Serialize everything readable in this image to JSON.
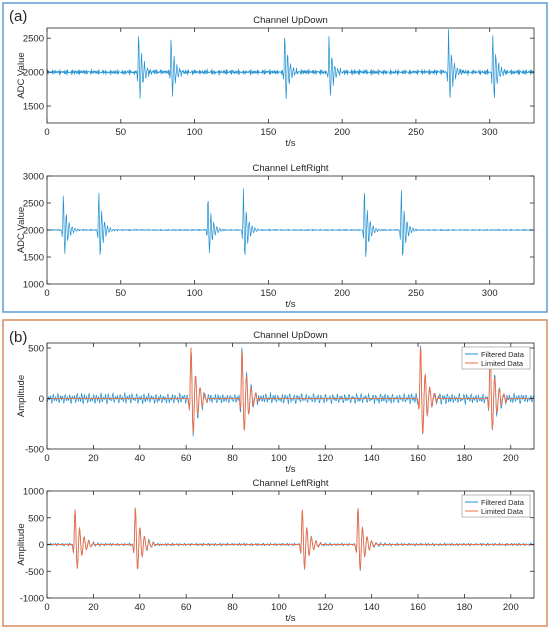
{
  "panels": [
    {
      "label": "(a)",
      "border_color": "#5b9bd5"
    },
    {
      "label": "(b)",
      "border_color": "#d98a5c"
    }
  ],
  "colors": {
    "filtered": "#1f8fd0",
    "limited": "#ef6c46",
    "axis": "#262626"
  },
  "chart_data": [
    {
      "type": "line",
      "panel": "(a)",
      "title": "Channel UpDown",
      "xlabel": "t/s",
      "ylabel": "ADC Value",
      "xlim": [
        0,
        330
      ],
      "ylim": [
        1250,
        2650
      ],
      "xticks": [
        0,
        50,
        100,
        150,
        200,
        250,
        300
      ],
      "yticks": [
        1500,
        2000,
        2500
      ],
      "baseline": 2000,
      "noise": 45,
      "noise_freq": 1.6,
      "legend": false,
      "series": [
        {
          "color": "#1f8fd0",
          "bursts": [
            {
              "t": 62,
              "amp": 600
            },
            {
              "t": 84,
              "amp": 520
            },
            {
              "t": 161,
              "amp": 600
            },
            {
              "t": 191,
              "amp": 540
            },
            {
              "t": 272,
              "amp": 620
            },
            {
              "t": 302,
              "amp": 600
            }
          ]
        }
      ]
    },
    {
      "type": "line",
      "panel": "(a)",
      "title": "Channel LeftRight",
      "xlabel": "t/s",
      "ylabel": "ADC Value",
      "xlim": [
        0,
        330
      ],
      "ylim": [
        1000,
        3000
      ],
      "xticks": [
        0,
        50,
        100,
        150,
        200,
        250,
        300
      ],
      "yticks": [
        1000,
        1500,
        2000,
        2500,
        3000
      ],
      "baseline": 2000,
      "noise": 15,
      "noise_freq": 1.6,
      "legend": false,
      "series": [
        {
          "color": "#1f8fd0",
          "bursts": [
            {
              "t": 11,
              "amp": 680
            },
            {
              "t": 35,
              "amp": 760
            },
            {
              "t": 109,
              "amp": 660
            },
            {
              "t": 133,
              "amp": 780
            },
            {
              "t": 215,
              "amp": 800
            },
            {
              "t": 240,
              "amp": 800
            }
          ]
        }
      ]
    },
    {
      "type": "line",
      "panel": "(b)",
      "title": "Channel UpDown",
      "xlabel": "t/s",
      "ylabel": "Amplitude",
      "xlim": [
        0,
        210
      ],
      "ylim": [
        -500,
        550
      ],
      "xticks": [
        0,
        20,
        40,
        60,
        80,
        100,
        120,
        140,
        160,
        180,
        200
      ],
      "yticks": [
        -500,
        0,
        500
      ],
      "baseline": 0,
      "noise": 55,
      "noise_freq": 1.0,
      "legend": true,
      "series": [
        {
          "name": "Filtered Data",
          "color": "#1f8fd0",
          "bursts": [
            {
              "t": 62,
              "amp": 520
            },
            {
              "t": 84,
              "amp": 500
            },
            {
              "t": 161,
              "amp": 540
            },
            {
              "t": 191,
              "amp": 470
            }
          ]
        },
        {
          "name": "Limited Data",
          "color": "#ef6c46",
          "bursts": [
            {
              "t": 62,
              "amp": 520
            },
            {
              "t": 84,
              "amp": 500
            },
            {
              "t": 161,
              "amp": 540
            },
            {
              "t": 191,
              "amp": 470
            }
          ]
        }
      ]
    },
    {
      "type": "line",
      "panel": "(b)",
      "title": "Channel LeftRight",
      "xlabel": "t/s",
      "ylabel": "Amplitude",
      "xlim": [
        0,
        210
      ],
      "ylim": [
        -1000,
        1000
      ],
      "xticks": [
        0,
        20,
        40,
        60,
        80,
        100,
        120,
        140,
        160,
        180,
        200
      ],
      "yticks": [
        -1000,
        -500,
        0,
        500,
        1000
      ],
      "baseline": 0,
      "noise": 30,
      "noise_freq": 1.0,
      "legend": true,
      "series": [
        {
          "name": "Filtered Data",
          "color": "#1f8fd0",
          "bursts": [
            {
              "t": 12,
              "amp": 680
            },
            {
              "t": 38,
              "amp": 720
            },
            {
              "t": 110,
              "amp": 680
            },
            {
              "t": 134,
              "amp": 720
            }
          ]
        },
        {
          "name": "Limited Data",
          "color": "#ef6c46",
          "bursts": [
            {
              "t": 12,
              "amp": 680
            },
            {
              "t": 38,
              "amp": 720
            },
            {
              "t": 110,
              "amp": 680
            },
            {
              "t": 134,
              "amp": 720
            }
          ]
        }
      ]
    }
  ]
}
